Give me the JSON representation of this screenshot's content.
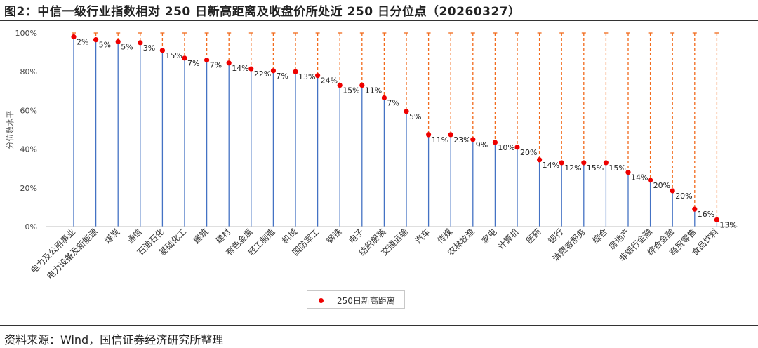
{
  "title": "图2：中信一级行业指数相对 250 日新高距离及收盘价所处近 250 日分位点（20260327）",
  "source": "资料来源：Wind，国信证券经济研究所整理",
  "chart_data": {
    "type": "scatter",
    "ylabel": "分位数水平",
    "ylim": [
      0,
      100
    ],
    "yticks": [
      "0%",
      "20%",
      "40%",
      "60%",
      "80%",
      "100%"
    ],
    "legend": "250日新高距离",
    "categories": [
      "电力及公用事业",
      "电力设备及新能源",
      "煤炭",
      "通信",
      "石油石化",
      "基础化工",
      "建筑",
      "建材",
      "有色金属",
      "轻工制造",
      "机械",
      "国防军工",
      "钢铁",
      "电子",
      "纺织服装",
      "交通运输",
      "汽车",
      "传媒",
      "农林牧渔",
      "家电",
      "计算机",
      "医药",
      "银行",
      "消费者服务",
      "综合",
      "房地产",
      "非银行金融",
      "综合金融",
      "商贸零售",
      "食品饮料"
    ],
    "values": [
      98,
      96.5,
      95.5,
      95,
      91,
      87,
      86,
      84.5,
      81.5,
      80.5,
      80,
      78,
      73,
      73,
      66.5,
      59.5,
      47.5,
      47.5,
      45,
      43.5,
      41,
      34.5,
      33,
      33,
      33,
      28,
      24,
      18.5,
      9,
      3.5
    ],
    "distance_labels": [
      "2%",
      "5%",
      "5%",
      "3%",
      "15%",
      "7%",
      "7%",
      "14%",
      "22%",
      "7%",
      "13%",
      "24%",
      "15%",
      "11%",
      "7%",
      "5%",
      "11%",
      "23%",
      "9%",
      "10%",
      "20%",
      "14%",
      "12%",
      "15%",
      "15%",
      "14%",
      "20%",
      "20%",
      "16%",
      "13%"
    ],
    "colors": {
      "point": "#ee0000",
      "stem": "#4472c4",
      "gap": "#f26b1d",
      "axis": "#bfbfbf"
    }
  }
}
